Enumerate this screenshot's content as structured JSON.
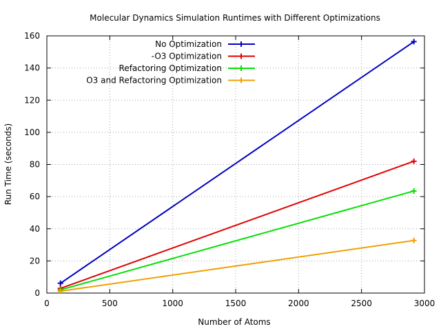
{
  "chart_data": {
    "type": "line",
    "title": "Molecular Dynamics Simulation Runtimes with Different Optimizations",
    "xlabel": "Number of Atoms",
    "ylabel": "Run Time (seconds)",
    "xlim": [
      0,
      3000
    ],
    "ylim": [
      0,
      160
    ],
    "xticks": [
      0,
      500,
      1000,
      1500,
      2000,
      2500,
      3000
    ],
    "yticks": [
      0,
      20,
      40,
      60,
      80,
      100,
      120,
      140,
      160
    ],
    "grid": true,
    "legend_position": "top-left",
    "series": [
      {
        "name": "No Optimization",
        "color": "#0000c0",
        "x": [
          108,
          2916
        ],
        "y": [
          6.1,
          156.4
        ]
      },
      {
        "name": "-O3 Optimization",
        "color": "#e00000",
        "x": [
          108,
          2916
        ],
        "y": [
          2.9,
          82.0
        ]
      },
      {
        "name": "Refactoring Optimization",
        "color": "#00e000",
        "x": [
          108,
          2916
        ],
        "y": [
          2.0,
          63.5
        ]
      },
      {
        "name": "O3 and Refactoring Optimization",
        "color": "#f0a000",
        "x": [
          108,
          2916
        ],
        "y": [
          1.2,
          32.7
        ]
      }
    ]
  }
}
